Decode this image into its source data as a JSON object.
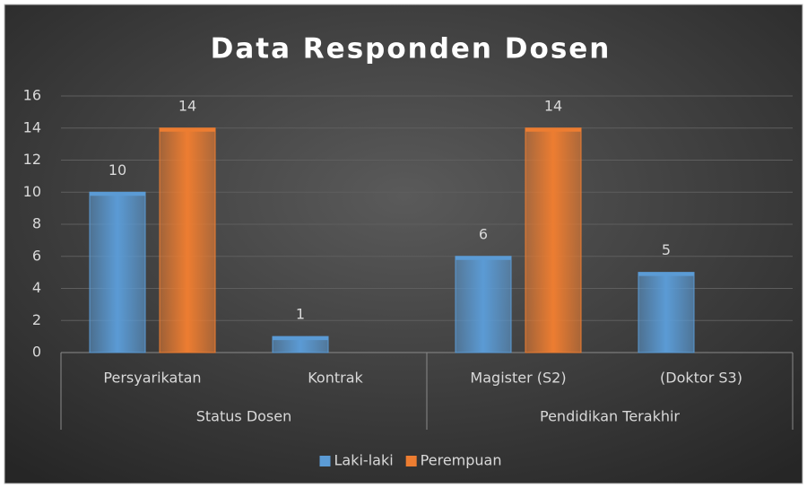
{
  "chart_data": {
    "type": "bar",
    "title": "Data Responden Dosen",
    "categories": [
      "Persyarikatan",
      "Kontrak",
      "Magister (S2)",
      "(Doktor S3)"
    ],
    "category_groups": [
      "Status Dosen",
      "Status Dosen",
      "Pendidikan Terakhir",
      "Pendidikan Terakhir"
    ],
    "series": [
      {
        "name": "Laki-laki",
        "color": "#5b9bd5",
        "values": [
          10,
          1,
          6,
          5
        ]
      },
      {
        "name": "Perempuan",
        "color": "#ed7d31",
        "values": [
          14,
          null,
          14,
          null
        ]
      }
    ],
    "ylim": [
      0,
      16
    ],
    "yticks": [
      0,
      2,
      4,
      6,
      8,
      10,
      12,
      14,
      16
    ],
    "grid": true,
    "legend": "bottom"
  }
}
